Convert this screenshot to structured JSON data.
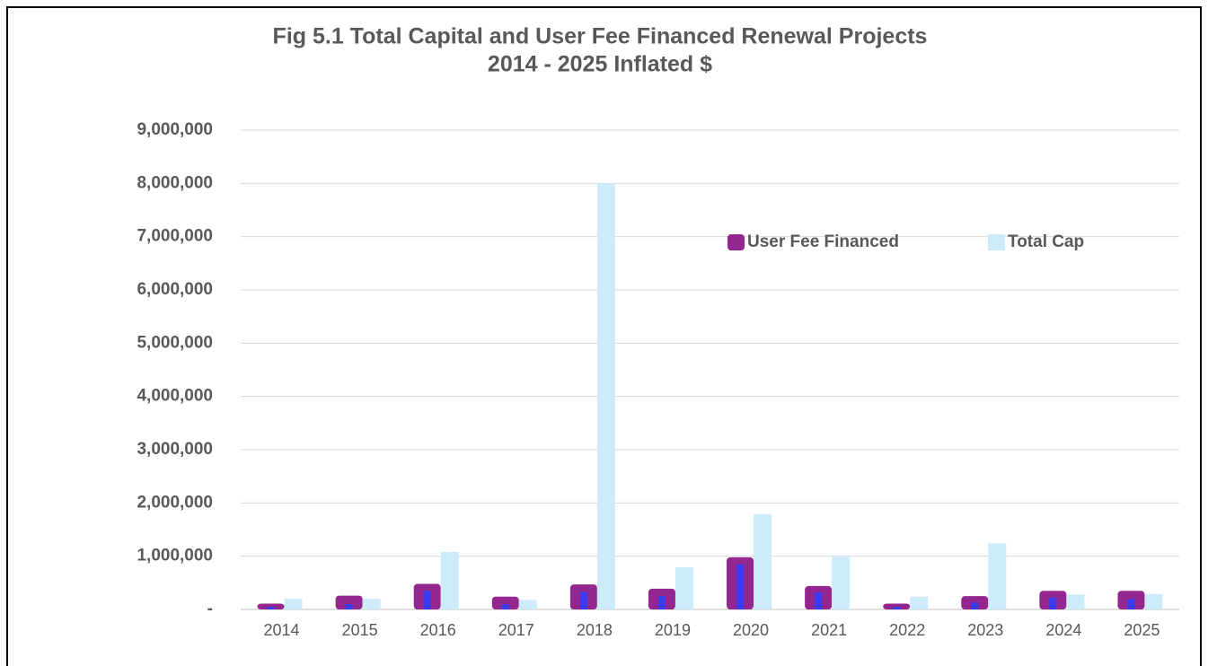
{
  "chart_data": {
    "type": "bar",
    "title": "Fig 5.1  Total Capital and User Fee Financed Renewal Projects",
    "subtitle": "2014 - 2025 Inflated $",
    "categories": [
      "2014",
      "2015",
      "2016",
      "2017",
      "2018",
      "2019",
      "2020",
      "2021",
      "2022",
      "2023",
      "2024",
      "2025"
    ],
    "series": [
      {
        "name": "User Fee Financed",
        "color": "#93278f",
        "values": [
          110000,
          260000,
          480000,
          240000,
          470000,
          390000,
          980000,
          440000,
          110000,
          250000,
          350000,
          350000
        ]
      },
      {
        "name": "Total Cap",
        "color": "#ccecfb",
        "values": [
          200000,
          200000,
          1080000,
          180000,
          8000000,
          790000,
          1790000,
          990000,
          240000,
          1240000,
          280000,
          290000
        ]
      },
      {
        "color": "#3a3af0",
        "values": [
          50000,
          100000,
          350000,
          100000,
          330000,
          250000,
          850000,
          320000,
          50000,
          130000,
          220000,
          200000
        ]
      }
    ],
    "ylim": [
      0,
      9000000
    ],
    "yticks": [
      {
        "value": 0,
        "label": "-"
      },
      {
        "value": 1000000,
        "label": "1,000,000"
      },
      {
        "value": 2000000,
        "label": "2,000,000"
      },
      {
        "value": 3000000,
        "label": "3,000,000"
      },
      {
        "value": 4000000,
        "label": "4,000,000"
      },
      {
        "value": 5000000,
        "label": "5,000,000"
      },
      {
        "value": 6000000,
        "label": "6,000,000"
      },
      {
        "value": 7000000,
        "label": "7,000,000"
      },
      {
        "value": 8000000,
        "label": "8,000,000"
      },
      {
        "value": 9000000,
        "label": "9,000,000"
      }
    ],
    "grid": true,
    "legend_position": "upper right"
  }
}
